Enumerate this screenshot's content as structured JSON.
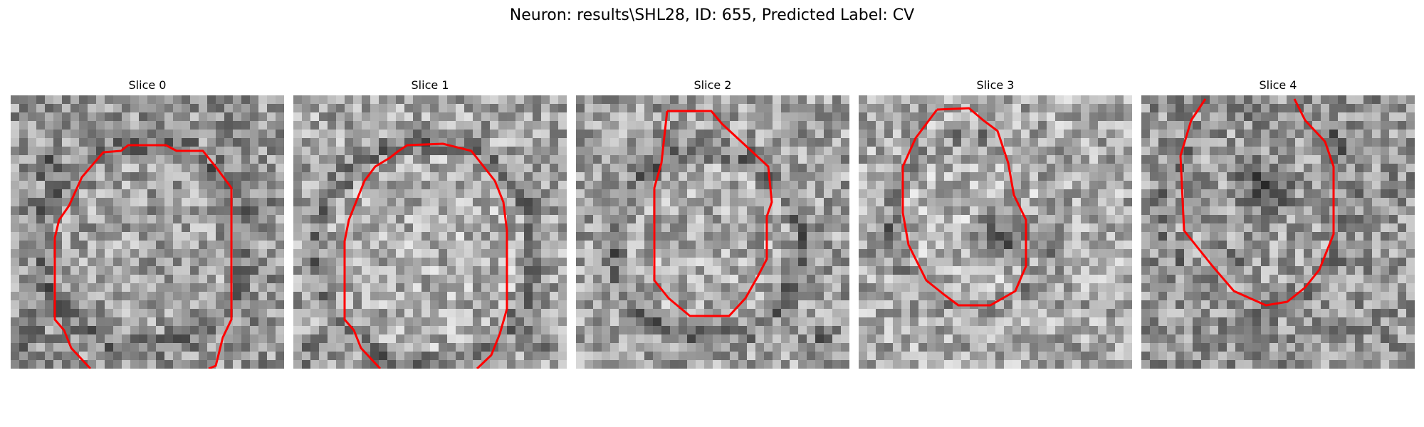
{
  "figure": {
    "title": "Neuron: results\\SHL28, ID: 655, Predicted Label: CV",
    "contour_color": "#ff0000",
    "colormap": "gray"
  },
  "panels": [
    {
      "title": "Slice 0",
      "grid": 32,
      "seed": 11,
      "base": 150,
      "contrast": 60
    },
    {
      "title": "Slice 1",
      "grid": 32,
      "seed": 23,
      "base": 165,
      "contrast": 60
    },
    {
      "title": "Slice 2",
      "grid": 32,
      "seed": 37,
      "base": 160,
      "contrast": 60
    },
    {
      "title": "Slice 3",
      "grid": 32,
      "seed": 51,
      "base": 170,
      "contrast": 60
    },
    {
      "title": "Slice 4",
      "grid": 32,
      "seed": 67,
      "base": 150,
      "contrast": 60
    }
  ]
}
